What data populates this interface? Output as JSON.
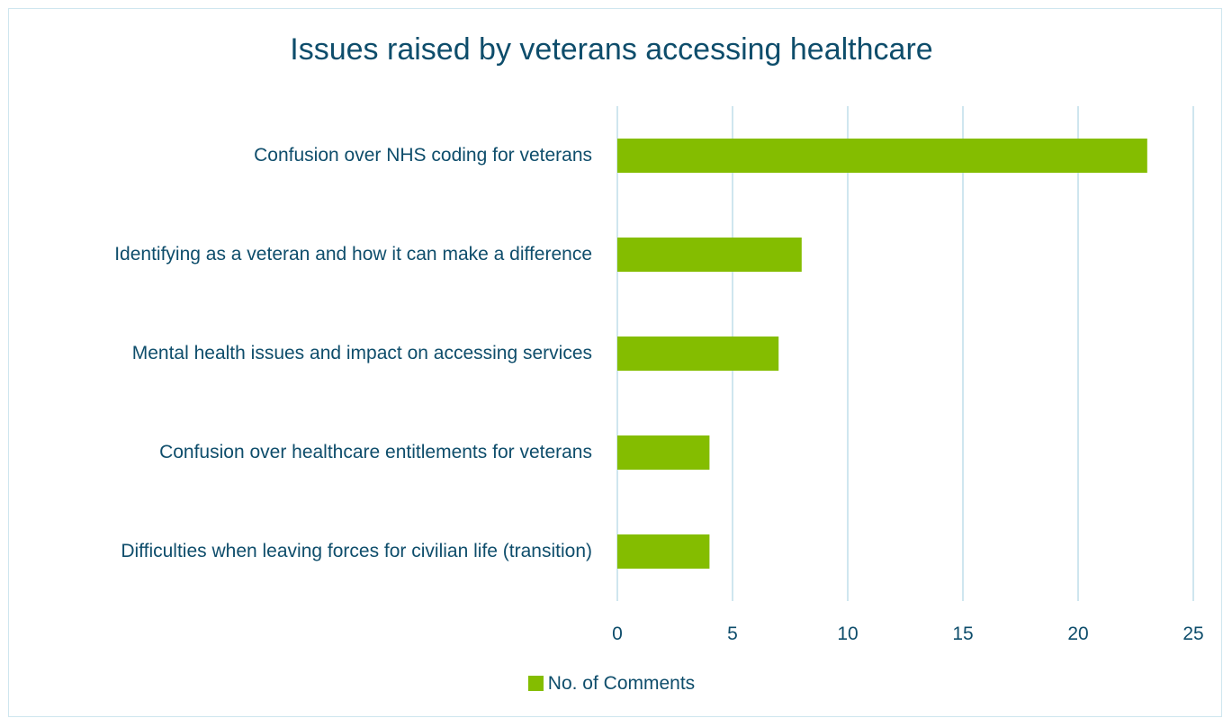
{
  "chart_data": {
    "type": "bar",
    "orientation": "horizontal",
    "title": "Issues raised by veterans accessing healthcare",
    "categories": [
      "Confusion over NHS coding for veterans",
      "Identifying as a veteran and how it can make a difference",
      "Mental health issues and impact on accessing services",
      "Confusion over healthcare entitlements for veterans",
      "Difficulties when leaving forces for civilian life (transition)"
    ],
    "series": [
      {
        "name": "No. of Comments",
        "values": [
          23,
          8,
          7,
          4,
          4
        ]
      }
    ],
    "xlim": [
      0,
      25
    ],
    "xticks": [
      0,
      5,
      10,
      15,
      20,
      25
    ],
    "grid": "vertical",
    "legend_position": "bottom",
    "colors": {
      "bar": "#84bd00",
      "grid": "#cfe6ef",
      "text": "#0e4d6b"
    }
  }
}
